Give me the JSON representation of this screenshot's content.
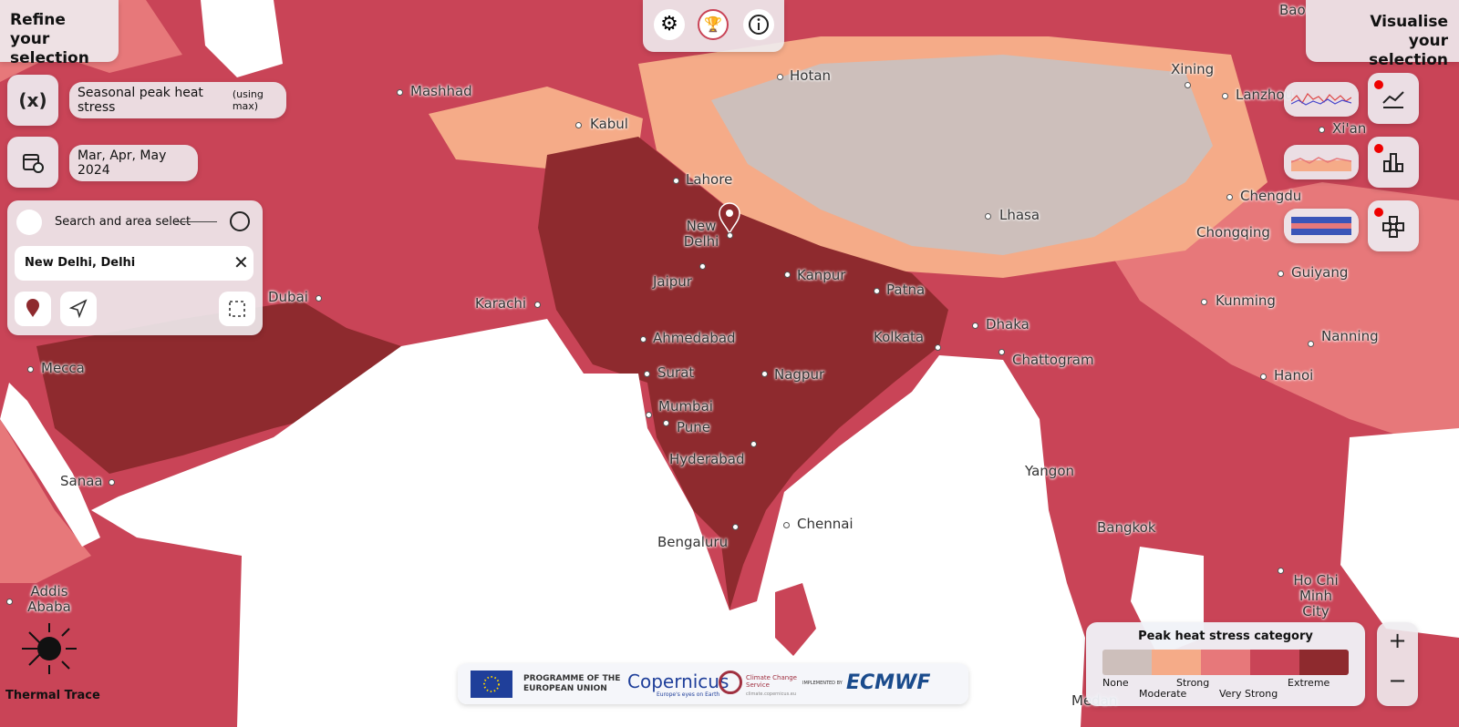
{
  "header": {
    "left_title": "Refine your selection",
    "right_title": "Visualise your selection"
  },
  "variable": {
    "icon_label": "(x)",
    "name": "Seasonal peak heat stress",
    "qualifier": "(using max)"
  },
  "period": "Mar, Apr, May 2024",
  "search": {
    "title": "Search and area select",
    "location": "New Delhi, Delhi"
  },
  "map": {
    "cities": [
      "Mashhad",
      "Hotan",
      "Kabul",
      "Lahore",
      "New Delhi",
      "Lhasa",
      "Jaipur",
      "Kanpur",
      "Patna",
      "Karachi",
      "Dubai",
      "Dhaka",
      "Ahmedabad",
      "Kolkata",
      "Chattogram",
      "Mecca",
      "Surat",
      "Nagpur",
      "Mumbai",
      "Pune",
      "Hyderabad",
      "Sanaa",
      "Yangon",
      "Chennai",
      "Bangkok",
      "Bengaluru",
      "Addis Ababa",
      "Ho Chi Minh City",
      "Hanoi",
      "Kunming",
      "Guiyang",
      "Chengdu",
      "Chongqing",
      "Nanning",
      "Xining",
      "Lanzhou",
      "Xi'an",
      "Bao",
      "Medan"
    ]
  },
  "legend": {
    "title": "Peak heat stress category",
    "categories": [
      {
        "label": "None",
        "color": "#cdbfbb"
      },
      {
        "label": "Moderate",
        "color": "#f5ab88"
      },
      {
        "label": "Strong",
        "color": "#e7787a"
      },
      {
        "label": "Very Strong",
        "color": "#c94457"
      },
      {
        "label": "Extreme",
        "color": "#8e2a2e"
      }
    ]
  },
  "zoom": {
    "in": "+",
    "out": "−"
  },
  "footer": {
    "programme": "PROGRAMME OF THE EUROPEAN UNION",
    "copernicus": "Copernicus",
    "copernicus_tagline": "Europe's eyes on Earth",
    "c3s": "Climate Change Service",
    "c3s_url": "climate.copernicus.eu",
    "implemented_by": "IMPLEMENTED BY",
    "ecmwf": "ECMWF"
  },
  "brand": "Thermal Trace"
}
